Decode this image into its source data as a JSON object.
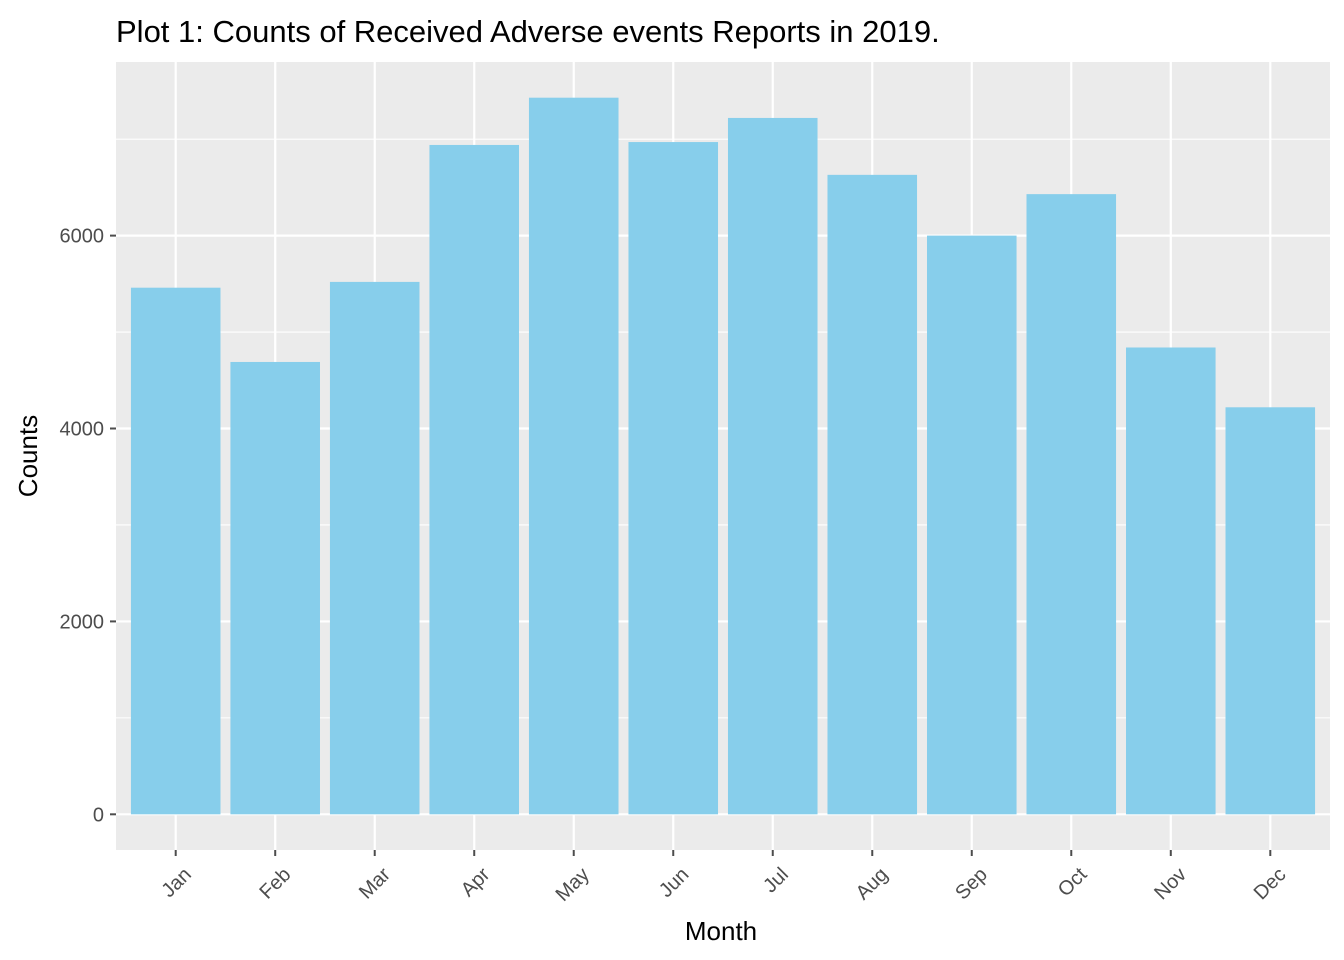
{
  "chart_data": {
    "type": "bar",
    "title": "Plot 1: Counts of Received Adverse events Reports in 2019.",
    "xlabel": "Month",
    "ylabel": "Counts",
    "categories": [
      "Jan",
      "Feb",
      "Mar",
      "Apr",
      "May",
      "Jun",
      "Jul",
      "Aug",
      "Sep",
      "Oct",
      "Nov",
      "Dec"
    ],
    "values": [
      5460,
      4690,
      5520,
      6940,
      7430,
      6970,
      7220,
      6630,
      6000,
      6430,
      4840,
      4220
    ],
    "y_ticks": [
      "0",
      "2000",
      "4000",
      "6000"
    ],
    "ylim": [
      -370,
      7800
    ],
    "grid": true,
    "legend": "none",
    "colors": {
      "bar": "#87CEEB",
      "panel": "#EBEBEB",
      "grid": "#FFFFFF",
      "tick": "#4D4D4D"
    }
  }
}
